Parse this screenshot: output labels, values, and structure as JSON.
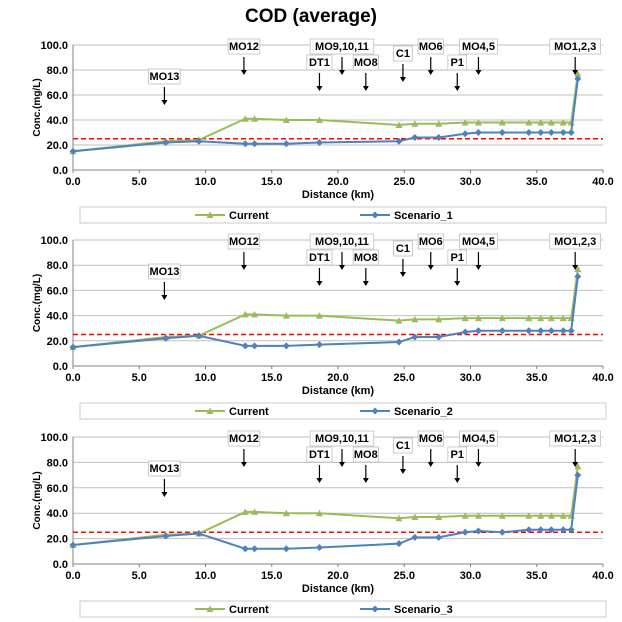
{
  "title": "COD (average)",
  "x_ticks": [
    "0.0",
    "5.0",
    "10.0",
    "15.0",
    "20.0",
    "25.0",
    "30.0",
    "35.0",
    "40.0"
  ],
  "y_ticks": [
    "0.0",
    "20.0",
    "40.0",
    "60.0",
    "80.0",
    "100.0"
  ],
  "colors": {
    "current": "#9bbb59",
    "scenario": "#4f81bd",
    "threshold": "#ff0000"
  },
  "annotations": [
    {
      "label": "MO13",
      "x": 6.9,
      "level": "low"
    },
    {
      "label": "MO12",
      "x": 12.9,
      "level": "high"
    },
    {
      "label": "MO9,10,11",
      "x": 20.3,
      "level": "high"
    },
    {
      "label": "DT1",
      "x": 18.6,
      "level": "mid"
    },
    {
      "label": "MO8",
      "x": 22.1,
      "level": "mid"
    },
    {
      "label": "C1",
      "x": 24.9,
      "level": "upper"
    },
    {
      "label": "MO6",
      "x": 27.0,
      "level": "high"
    },
    {
      "label": "P1",
      "x": 29.0,
      "level": "mid"
    },
    {
      "label": "MO4,5",
      "x": 30.6,
      "level": "high"
    },
    {
      "label": "MO1,2,3",
      "x": 37.9,
      "level": "high"
    }
  ],
  "chart_data": [
    {
      "type": "line",
      "xlabel": "Distance (km)",
      "ylabel": "Conc.(mg/L)",
      "xlim": [
        0,
        40
      ],
      "ylim": [
        0,
        100
      ],
      "threshold": 25,
      "series": [
        {
          "name": "Current",
          "x": [
            0.0,
            7.0,
            9.5,
            13.0,
            13.7,
            16.1,
            18.6,
            24.6,
            25.8,
            27.6,
            29.6,
            30.6,
            32.4,
            34.4,
            35.3,
            36.1,
            37.0,
            37.6,
            38.1
          ],
          "y": [
            15,
            23,
            24,
            41,
            41,
            40,
            40,
            36,
            37,
            37,
            38,
            38,
            38,
            38,
            38,
            38,
            38,
            38,
            77
          ]
        },
        {
          "name": "Scenario_1",
          "x": [
            0.0,
            7.0,
            9.5,
            13.0,
            13.7,
            16.1,
            18.6,
            24.6,
            25.8,
            27.6,
            29.6,
            30.6,
            32.4,
            34.4,
            35.3,
            36.1,
            37.0,
            37.6,
            38.1
          ],
          "y": [
            15,
            22,
            23,
            21,
            21,
            21,
            22,
            23,
            26,
            26,
            29,
            30,
            30,
            30,
            30,
            30,
            30,
            30,
            73
          ]
        }
      ]
    },
    {
      "type": "line",
      "xlabel": "Distance (km)",
      "ylabel": "Conc.(mg/L)",
      "xlim": [
        0,
        40
      ],
      "ylim": [
        0,
        100
      ],
      "threshold": 25,
      "series": [
        {
          "name": "Current",
          "x": [
            0.0,
            7.0,
            9.5,
            13.0,
            13.7,
            16.1,
            18.6,
            24.6,
            25.8,
            27.6,
            29.6,
            30.6,
            32.4,
            34.4,
            35.3,
            36.1,
            37.0,
            37.6,
            38.1
          ],
          "y": [
            15,
            23,
            24,
            41,
            41,
            40,
            40,
            36,
            37,
            37,
            38,
            38,
            38,
            38,
            38,
            38,
            38,
            38,
            77
          ]
        },
        {
          "name": "Scenario_2",
          "x": [
            0.0,
            7.0,
            9.5,
            13.0,
            13.7,
            16.1,
            18.6,
            24.6,
            25.8,
            27.6,
            29.6,
            30.6,
            32.4,
            34.4,
            35.3,
            36.1,
            37.0,
            37.6,
            38.1
          ],
          "y": [
            15,
            22,
            24,
            16,
            16,
            16,
            17,
            19,
            23,
            23,
            27,
            28,
            28,
            28,
            28,
            28,
            28,
            28,
            71
          ]
        }
      ]
    },
    {
      "type": "line",
      "xlabel": "Distance (km)",
      "ylabel": "Conc.(mg/L)",
      "xlim": [
        0,
        40
      ],
      "ylim": [
        0,
        100
      ],
      "threshold": 25,
      "series": [
        {
          "name": "Current",
          "x": [
            0.0,
            7.0,
            9.5,
            13.0,
            13.7,
            16.1,
            18.6,
            24.6,
            25.8,
            27.6,
            29.6,
            30.6,
            32.4,
            34.4,
            35.3,
            36.1,
            37.0,
            37.6,
            38.1
          ],
          "y": [
            15,
            23,
            24,
            41,
            41,
            40,
            40,
            36,
            37,
            37,
            38,
            38,
            38,
            38,
            38,
            38,
            38,
            38,
            77
          ]
        },
        {
          "name": "Scenario_3",
          "x": [
            0.0,
            7.0,
            9.5,
            13.0,
            13.7,
            16.1,
            18.6,
            24.6,
            25.8,
            27.6,
            29.6,
            30.6,
            32.4,
            34.4,
            35.3,
            36.1,
            37.0,
            37.6,
            38.1
          ],
          "y": [
            15,
            22,
            24,
            12,
            12,
            12,
            13,
            16,
            21,
            21,
            25,
            26,
            25,
            27,
            27,
            27,
            27,
            27,
            70
          ]
        }
      ]
    }
  ]
}
